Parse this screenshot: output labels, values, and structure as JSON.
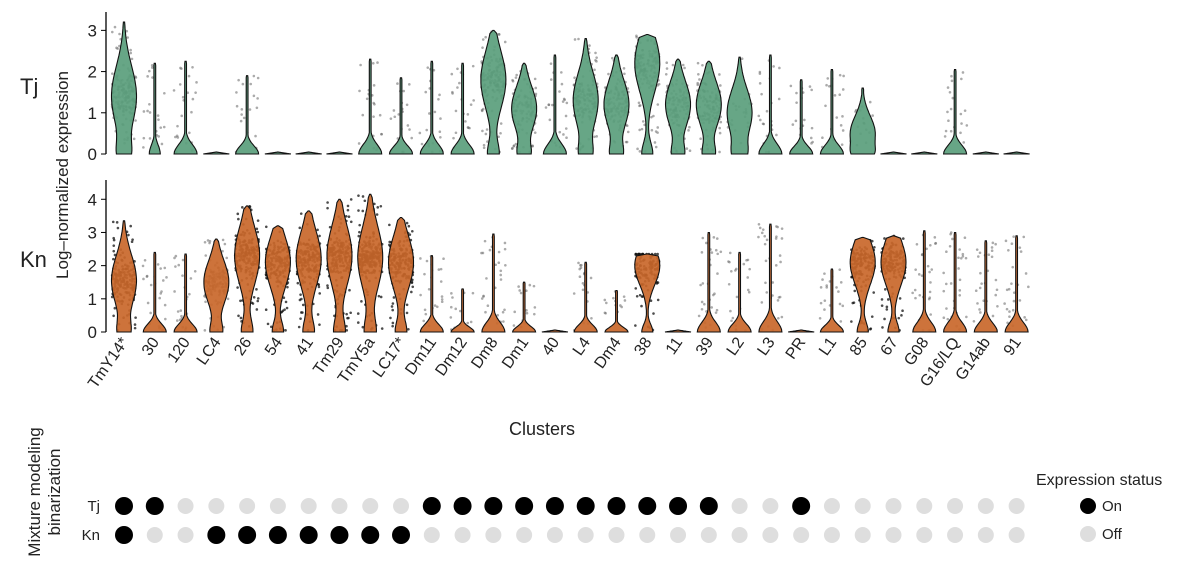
{
  "chart_data": {
    "type": "violin",
    "ylabel": "Log–normalized expression",
    "xlabel": "Clusters",
    "categories": [
      "TmY14*",
      "30",
      "120",
      "LC4",
      "26",
      "54",
      "41",
      "Tm29",
      "TmY5a",
      "LC17*",
      "Dm11",
      "Dm12",
      "Dm8",
      "Dm1",
      "40",
      "L4",
      "Dm4",
      "38",
      "11",
      "39",
      "L2",
      "L3",
      "PR",
      "L1",
      "85",
      "67",
      "G08",
      "G16/LQ",
      "G14ab",
      "91"
    ],
    "panels": [
      {
        "gene": "Tj",
        "color": "#5a9e7c",
        "ylim": [
          0,
          3.3
        ],
        "yticks": [
          0,
          1,
          2,
          3
        ],
        "max_values": [
          3.2,
          2.2,
          2.25,
          0.05,
          1.9,
          0.05,
          0.05,
          0.05,
          2.3,
          1.85,
          2.25,
          2.2,
          3.0,
          2.2,
          2.4,
          2.8,
          2.4,
          2.9,
          2.3,
          2.25,
          2.35,
          2.4,
          1.8,
          2.05,
          1.6,
          0.05,
          0.05,
          2.05,
          0.05,
          0.05
        ],
        "medians": [
          1.4,
          0.3,
          0.15,
          0,
          0,
          0,
          0,
          0,
          0,
          0,
          0.25,
          0.25,
          1.8,
          1.1,
          0,
          1.3,
          1.2,
          2.2,
          1.2,
          1.2,
          1.0,
          0.15,
          0.2,
          0.2,
          0.5,
          0,
          0,
          0,
          0,
          0
        ]
      },
      {
        "gene": "Kn",
        "color": "#c9672a",
        "ylim": [
          0,
          4.4
        ],
        "yticks": [
          0,
          1,
          2,
          3,
          4
        ],
        "max_values": [
          3.35,
          2.4,
          2.35,
          2.8,
          3.8,
          3.2,
          3.65,
          4.0,
          4.15,
          3.45,
          2.3,
          1.3,
          2.95,
          1.5,
          0.05,
          2.1,
          1.25,
          2.35,
          0.05,
          3.0,
          2.4,
          3.25,
          0.05,
          1.9,
          2.85,
          2.9,
          3.05,
          3.0,
          2.75,
          2.9
        ],
        "medians": [
          1.55,
          0,
          0,
          1.5,
          2.3,
          2.1,
          2.2,
          2.3,
          2.25,
          2.1,
          0,
          0,
          0,
          0,
          0,
          0,
          0,
          2.0,
          0,
          0,
          0,
          0,
          0,
          0,
          2.1,
          2.1,
          0,
          0,
          0,
          0
        ]
      }
    ],
    "binarization": {
      "title": "Mixture modeling binarization",
      "rows": [
        {
          "gene": "Tj",
          "status": [
            "On",
            "On",
            "Off",
            "Off",
            "Off",
            "Off",
            "Off",
            "Off",
            "Off",
            "Off",
            "On",
            "On",
            "On",
            "On",
            "On",
            "On",
            "On",
            "On",
            "On",
            "On",
            "Off",
            "Off",
            "On",
            "Off",
            "Off",
            "Off",
            "Off",
            "Off",
            "Off",
            "Off"
          ]
        },
        {
          "gene": "Kn",
          "status": [
            "On",
            "Off",
            "Off",
            "On",
            "On",
            "On",
            "On",
            "On",
            "On",
            "On",
            "Off",
            "Off",
            "Off",
            "Off",
            "Off",
            "Off",
            "Off",
            "Off",
            "Off",
            "Off",
            "Off",
            "Off",
            "Off",
            "Off",
            "Off",
            "Off",
            "Off",
            "Off",
            "Off",
            "Off"
          ]
        }
      ],
      "on_color": "#000000",
      "off_color": "#dedede"
    },
    "legend": {
      "title": "Expression status",
      "items": [
        "On",
        "Off"
      ],
      "placement": "bottom-right"
    }
  }
}
